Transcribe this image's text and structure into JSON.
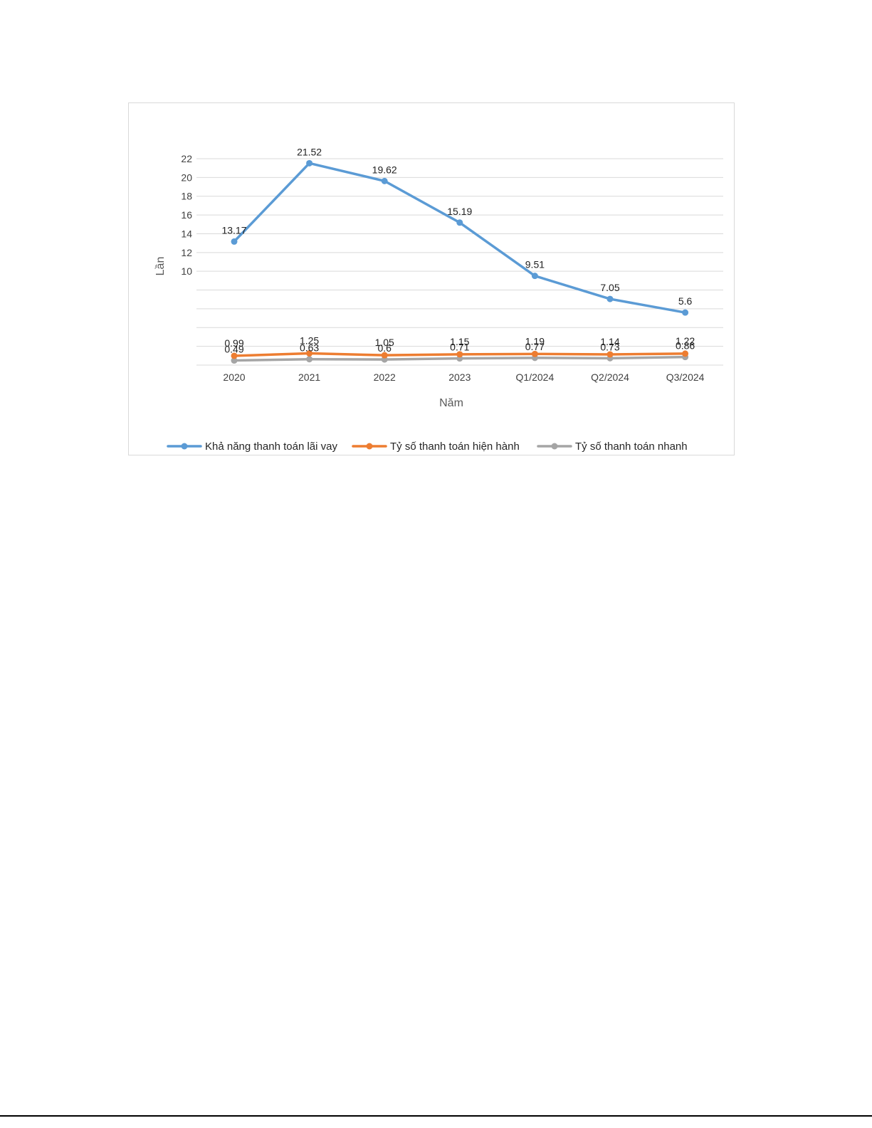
{
  "chart_data": {
    "type": "line",
    "title": "",
    "xlabel": "Năm",
    "ylabel": "Lần",
    "categories": [
      "2020",
      "2021",
      "2022",
      "2023",
      "Q1/2024",
      "Q2/2024",
      "Q3/2024"
    ],
    "series": [
      {
        "name": "Khả năng thanh toán lãi vay",
        "color": "#5B9BD5",
        "values": [
          13.17,
          21.52,
          19.62,
          15.19,
          9.51,
          7.05,
          5.6
        ],
        "labels": [
          "13.17",
          "21.52",
          "19.62",
          "15.19",
          "9.51",
          "7.05",
          "5.6"
        ]
      },
      {
        "name": "Tỷ số thanh toán hiện hành",
        "color": "#ED7D31",
        "values": [
          0.99,
          1.25,
          1.05,
          1.15,
          1.19,
          1.14,
          1.22
        ],
        "labels": [
          "0.99",
          "1.25",
          "1.05",
          "1.15",
          "1.19",
          "1.14",
          "1.22"
        ]
      },
      {
        "name": "Tỷ số thanh toán nhanh",
        "color": "#A5A5A5",
        "values": [
          0.49,
          0.63,
          0.6,
          0.71,
          0.77,
          0.73,
          0.86
        ],
        "labels": [
          "0.49",
          "0.63",
          "0.6",
          "0.71",
          "0.77",
          "0.73",
          "0.86"
        ]
      }
    ],
    "ylim": [
      0,
      22
    ],
    "yticks": [
      {
        "value": 22,
        "label": "22"
      },
      {
        "value": 20,
        "label": "20"
      },
      {
        "value": 18,
        "label": "18"
      },
      {
        "value": 16,
        "label": "16"
      },
      {
        "value": 14,
        "label": "14"
      },
      {
        "value": 12,
        "label": "12"
      },
      {
        "value": 10,
        "label": "10"
      },
      {
        "value": 8,
        "label": ""
      },
      {
        "value": 6,
        "label": ""
      },
      {
        "value": 4,
        "label": ""
      },
      {
        "value": 2,
        "label": ""
      },
      {
        "value": 0,
        "label": ""
      }
    ],
    "grid": true,
    "legend_position": "bottom"
  }
}
